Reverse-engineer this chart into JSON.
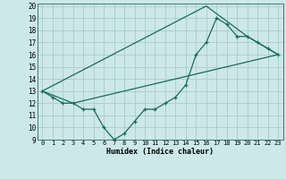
{
  "title": "",
  "xlabel": "Humidex (Indice chaleur)",
  "background_color": "#cce8e8",
  "grid_color": "#aacccc",
  "line_color": "#1a6b5a",
  "xlim": [
    -0.5,
    23.5
  ],
  "ylim": [
    9,
    20.2
  ],
  "xticks": [
    0,
    1,
    2,
    3,
    4,
    5,
    6,
    7,
    8,
    9,
    10,
    11,
    12,
    13,
    14,
    15,
    16,
    17,
    18,
    19,
    20,
    21,
    22,
    23
  ],
  "yticks": [
    9,
    10,
    11,
    12,
    13,
    14,
    15,
    16,
    17,
    18,
    19,
    20
  ],
  "line1_x": [
    0,
    1,
    2,
    3,
    4,
    5,
    6,
    7,
    8,
    9,
    10,
    11,
    12,
    13,
    14,
    15,
    16,
    17,
    18,
    19,
    20,
    21,
    22,
    23
  ],
  "line1_y": [
    13,
    12.5,
    12,
    12,
    11.5,
    11.5,
    10,
    9,
    9.5,
    10.5,
    11.5,
    11.5,
    12,
    12.5,
    13.5,
    16,
    17,
    19,
    18.5,
    17.5,
    17.5,
    17,
    16.5,
    16
  ],
  "line2_x": [
    0,
    3,
    23
  ],
  "line2_y": [
    13,
    12,
    16
  ],
  "line3_x": [
    0,
    16,
    20,
    23
  ],
  "line3_y": [
    13,
    20,
    17.5,
    16
  ]
}
